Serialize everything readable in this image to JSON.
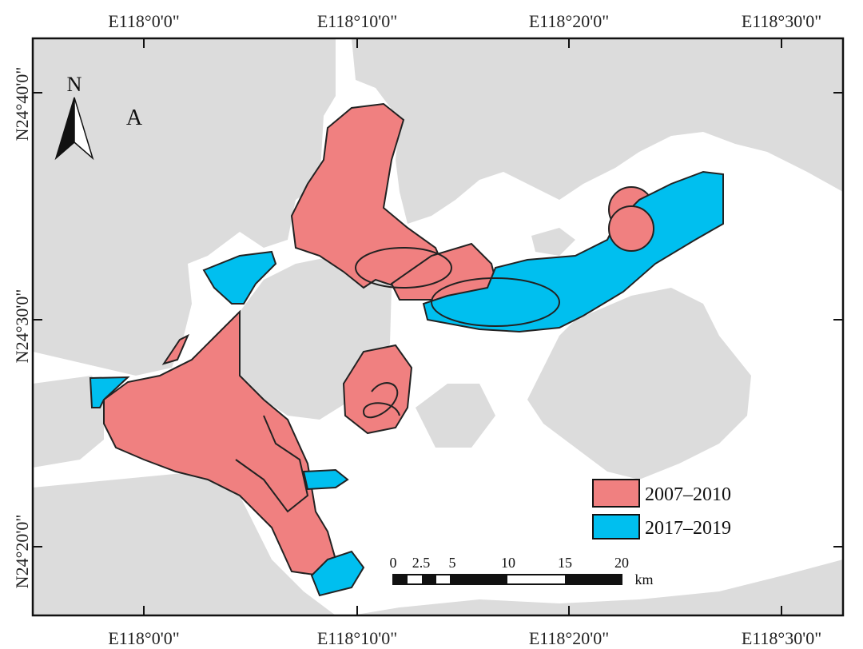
{
  "graticule": {
    "top": [
      "E118°0'0\"",
      "E118°10'0\"",
      "E118°20'0\"",
      "E118°30'0\""
    ],
    "bottom": [
      "E118°0'0\"",
      "E118°10'0\"",
      "E118°20'0\"",
      "E118°30'0\""
    ],
    "left": [
      "N24°40'0\"",
      "N24°30'0\"",
      "N24°20'0\""
    ]
  },
  "panel_label": "A",
  "north_arrow": {
    "letter": "N",
    "icon": "north-arrow-icon"
  },
  "legend": [
    {
      "label": "2007–2010",
      "color": "#f08080"
    },
    {
      "label": "2017–2019",
      "color": "#00bfef"
    }
  ],
  "scale_bar": {
    "ticks": [
      "0",
      "2.5",
      "5",
      "10",
      "15",
      "20"
    ],
    "unit": "km"
  },
  "colors": {
    "land": "#dcdcdc",
    "sea": "#ffffff",
    "frame": "#111111"
  }
}
